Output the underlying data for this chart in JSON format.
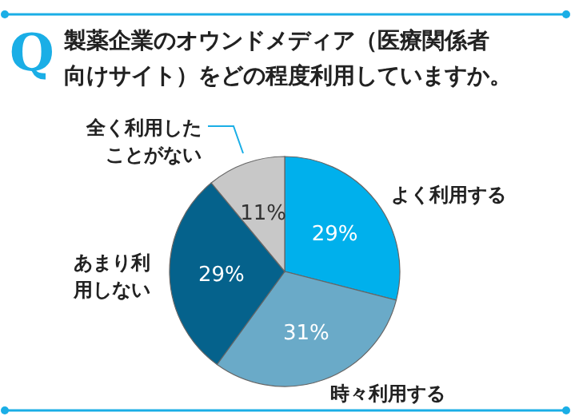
{
  "chart_data": {
    "type": "pie",
    "title": "製薬企業のオウンドメディア（医療関係者向けサイト）をどの程度利用していますか。",
    "annotations": [
      "Q"
    ],
    "categories": [
      "よく利用する",
      "時々利用する",
      "あまり利用しない",
      "全く利用したことがない"
    ],
    "values": [
      29,
      31,
      29,
      11
    ],
    "value_labels": [
      "29%",
      "31%",
      "29%",
      "11%"
    ],
    "colors": [
      "#00b0ec",
      "#6aaac8",
      "#05628c",
      "#c8c8c8"
    ]
  }
}
